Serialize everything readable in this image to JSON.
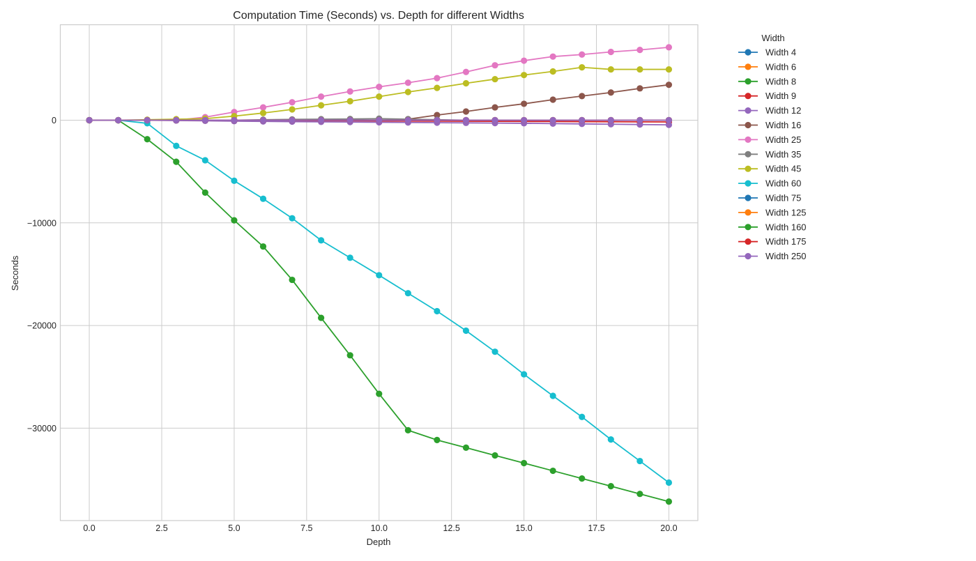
{
  "chart_data": {
    "type": "line",
    "title": "Computation Time (Seconds) vs. Depth for different Widths",
    "xlabel": "Depth",
    "ylabel": "Seconds",
    "xlim": [
      -1,
      21
    ],
    "ylim": [
      -39000,
      9300
    ],
    "xticks": [
      0,
      2.5,
      5,
      7.5,
      10,
      12.5,
      15,
      17.5,
      20
    ],
    "xtick_labels": [
      "0.0",
      "2.5",
      "5.0",
      "7.5",
      "10.0",
      "12.5",
      "15.0",
      "17.5",
      "20.0"
    ],
    "yticks": [
      0,
      -10000,
      -20000,
      -30000
    ],
    "ytick_labels": [
      "0",
      "−10000",
      "−20000",
      "−30000"
    ],
    "grid": true,
    "legend_title": "Width",
    "legend_position": "outside-right",
    "x": [
      0,
      1,
      2,
      3,
      4,
      5,
      6,
      7,
      8,
      9,
      10,
      11,
      12,
      13,
      14,
      15,
      16,
      17,
      18,
      19,
      20
    ],
    "series": [
      {
        "name": "Width 4",
        "color": "#1f77b4",
        "values": [
          0,
          0,
          0,
          0,
          0,
          0,
          0,
          0,
          0,
          0,
          0,
          0,
          0,
          0,
          0,
          0,
          0,
          0,
          0,
          0,
          0
        ]
      },
      {
        "name": "Width 6",
        "color": "#ff7f0e",
        "values": [
          0,
          0,
          0,
          0,
          0,
          0,
          0,
          0,
          0,
          0,
          0,
          0,
          0,
          0,
          0,
          0,
          0,
          0,
          0,
          0,
          0
        ]
      },
      {
        "name": "Width 8",
        "color": "#2ca02c",
        "values": [
          0,
          0,
          0,
          0,
          0,
          0,
          0,
          0,
          0,
          0,
          0,
          0,
          0,
          0,
          0,
          0,
          0,
          0,
          0,
          0,
          0
        ]
      },
      {
        "name": "Width 9",
        "color": "#d62728",
        "values": [
          0,
          0,
          0,
          0,
          -10,
          -20,
          -30,
          -40,
          -50,
          -60,
          -70,
          -80,
          -90,
          -100,
          -110,
          -120,
          -130,
          -140,
          -150,
          -160,
          -170
        ]
      },
      {
        "name": "Width 12",
        "color": "#9467bd",
        "values": [
          0,
          0,
          0,
          -30,
          -60,
          -90,
          -120,
          -140,
          -160,
          -180,
          -200,
          -220,
          -240,
          -260,
          -280,
          -300,
          -330,
          -360,
          -390,
          -420,
          -450
        ]
      },
      {
        "name": "Width 16",
        "color": "#8c564b",
        "values": [
          0,
          0,
          0,
          0,
          0,
          0,
          0,
          0,
          0,
          0,
          0,
          100,
          500,
          850,
          1250,
          1600,
          2000,
          2350,
          2700,
          3100,
          3450
        ]
      },
      {
        "name": "Width 25",
        "color": "#e377c2",
        "values": [
          0,
          0,
          0,
          0,
          300,
          800,
          1250,
          1750,
          2300,
          2800,
          3250,
          3650,
          4100,
          4700,
          5350,
          5800,
          6200,
          6400,
          6650,
          6850,
          7100
        ]
      },
      {
        "name": "Width 35",
        "color": "#7f7f7f",
        "values": [
          0,
          0,
          0,
          0,
          0,
          0,
          50,
          80,
          100,
          120,
          150,
          100,
          50,
          0,
          0,
          0,
          0,
          0,
          0,
          0,
          0
        ]
      },
      {
        "name": "Width 45",
        "color": "#bcbd22",
        "values": [
          0,
          0,
          50,
          100,
          150,
          400,
          700,
          1050,
          1450,
          1850,
          2300,
          2750,
          3150,
          3600,
          4000,
          4400,
          4750,
          5150,
          4950,
          4950,
          4950
        ]
      },
      {
        "name": "Width 60",
        "color": "#17becf",
        "values": [
          0,
          0,
          -300,
          -2500,
          -3900,
          -5900,
          -7650,
          -9550,
          -11700,
          -13400,
          -15100,
          -16850,
          -18600,
          -20500,
          -22550,
          -24750,
          -26850,
          -28900,
          -31100,
          -33200,
          -35300
        ]
      },
      {
        "name": "Width 75",
        "color": "#1f77b4",
        "values": [
          0,
          0,
          0,
          0,
          0,
          0,
          0,
          0,
          0,
          0,
          0,
          0,
          0,
          0,
          0,
          0,
          0,
          0,
          0,
          0,
          0
        ]
      },
      {
        "name": "Width 125",
        "color": "#ff7f0e",
        "values": [
          0,
          0,
          0,
          0,
          0,
          0,
          0,
          0,
          0,
          0,
          0,
          0,
          0,
          0,
          0,
          0,
          0,
          0,
          0,
          0,
          0
        ]
      },
      {
        "name": "Width 160",
        "color": "#2ca02c",
        "values": [
          0,
          0,
          -1850,
          -4050,
          -7050,
          -9750,
          -12300,
          -15550,
          -19250,
          -22900,
          -26650,
          -30200,
          -31150,
          -31900,
          -32650,
          -33400,
          -34150,
          -34900,
          -35650,
          -36400,
          -37150
        ]
      },
      {
        "name": "Width 175",
        "color": "#d62728",
        "values": [
          0,
          0,
          0,
          0,
          0,
          0,
          0,
          0,
          0,
          0,
          0,
          0,
          0,
          0,
          0,
          0,
          0,
          0,
          0,
          0,
          0
        ]
      },
      {
        "name": "Width 250",
        "color": "#9467bd",
        "values": [
          0,
          0,
          0,
          0,
          0,
          0,
          0,
          0,
          0,
          0,
          0,
          0,
          0,
          0,
          0,
          0,
          0,
          0,
          0,
          0,
          0
        ]
      }
    ]
  }
}
